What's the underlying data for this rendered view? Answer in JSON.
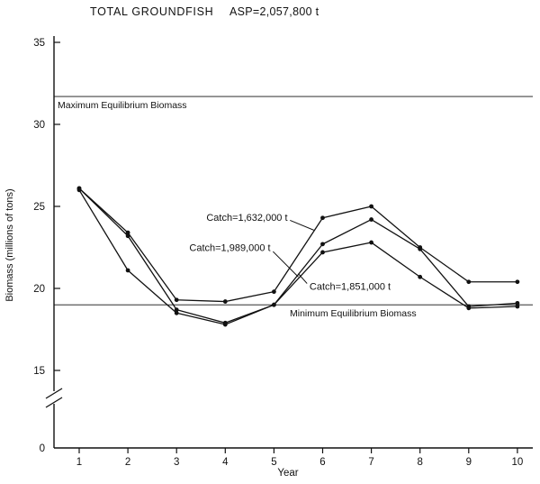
{
  "chart_data": {
    "type": "line",
    "title": "TOTAL GROUNDFISH",
    "subtitle": "ASP=2,057,800 t",
    "xlabel": "Year",
    "ylabel": "Biomass (millions of tons)",
    "x": [
      1,
      2,
      3,
      4,
      5,
      6,
      7,
      8,
      9,
      10
    ],
    "y_ticks": [
      35,
      30,
      25,
      20,
      15,
      0
    ],
    "ylim": [
      0,
      35
    ],
    "plot_value_range": [
      15,
      35
    ],
    "axis_break": true,
    "grid": false,
    "legend": "inline-annotations",
    "line_color": "#111111",
    "reference_lines": [
      {
        "label": "Maximum Equilibrium Biomass",
        "value": 31.7
      },
      {
        "label": "Minimum Equilibrium Biomass",
        "value": 19.0
      }
    ],
    "series": [
      {
        "name": "Catch=1,632,000 t",
        "values": [
          26.1,
          23.4,
          19.3,
          19.2,
          19.8,
          24.3,
          25.0,
          22.5,
          20.4,
          20.4
        ]
      },
      {
        "name": "Catch=1,851,000 t",
        "values": [
          26.1,
          23.2,
          18.7,
          17.9,
          19.0,
          22.7,
          24.2,
          22.4,
          18.9,
          19.1
        ]
      },
      {
        "name": "Catch=1,989,000 t",
        "values": [
          26.0,
          21.1,
          18.5,
          17.8,
          19.0,
          22.2,
          22.8,
          20.7,
          18.8,
          18.9
        ]
      }
    ],
    "annotations": [
      {
        "text": "Catch=1,632,000 t",
        "text_year": 5.28,
        "text_value": 24.35,
        "align": "end",
        "leader": {
          "x1": 5.33,
          "y1": 24.15,
          "x2": 5.82,
          "y2": 23.55
        }
      },
      {
        "text": "Catch=1,989,000 t",
        "text_year": 4.93,
        "text_value": 22.5,
        "align": "end",
        "leader": {
          "x1": 4.98,
          "y1": 22.25,
          "x2": 5.5,
          "y2": 20.7
        }
      },
      {
        "text": "Catch=1,851,000 t",
        "text_year": 5.73,
        "text_value": 20.15,
        "align": "start",
        "leader": {
          "x1": 5.68,
          "y1": 20.3,
          "x2": 5.5,
          "y2": 20.9
        }
      }
    ]
  }
}
